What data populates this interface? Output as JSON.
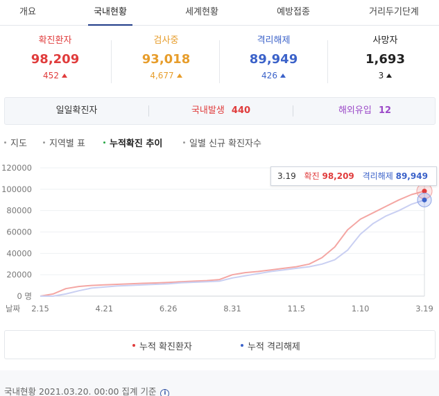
{
  "tabs": [
    {
      "label": "개요"
    },
    {
      "label": "국내현황"
    },
    {
      "label": "세계현황"
    },
    {
      "label": "예방접종"
    },
    {
      "label": "거리두기단계"
    }
  ],
  "stats": [
    {
      "label": "확진환자",
      "value": "98,209",
      "delta": "452",
      "color": "#e03c3c"
    },
    {
      "label": "검사중",
      "value": "93,018",
      "delta": "4,677",
      "color": "#e79d2b"
    },
    {
      "label": "격리해제",
      "value": "89,949",
      "delta": "426",
      "color": "#3b62c9"
    },
    {
      "label": "사망자",
      "value": "1,693",
      "delta": "3",
      "color": "#222222"
    }
  ],
  "daily": {
    "label": "일일확진자",
    "domestic_label": "국내발생",
    "domestic_value": "440",
    "overseas_label": "해외유입",
    "overseas_value": "12"
  },
  "subtabs": [
    {
      "label": "지도"
    },
    {
      "label": "지역별 표"
    },
    {
      "label": "누적확진 추이"
    },
    {
      "label": "일별 신규 확진자수"
    }
  ],
  "tooltip": {
    "date": "3.19",
    "confirmed_label": "확진",
    "confirmed_value": "98,209",
    "released_label": "격리해제",
    "released_value": "89,949"
  },
  "chart_data": {
    "type": "line",
    "y_ticks": [
      "120000",
      "100000",
      "80000",
      "60000",
      "40000",
      "20000",
      "0 명"
    ],
    "ylim": [
      0,
      120000
    ],
    "xlabel": "날짜",
    "x_ticks": [
      "2.15",
      "4.21",
      "6.26",
      "8.31",
      "11.5",
      "1.10",
      "3.19"
    ],
    "series": [
      {
        "name": "누적 확진환자",
        "color": "#f4a6a3",
        "values": [
          0,
          2000,
          7000,
          9000,
          10000,
          10500,
          11000,
          11500,
          12000,
          12300,
          12800,
          13500,
          14000,
          14500,
          15500,
          20000,
          22000,
          23000,
          24500,
          26000,
          27500,
          30000,
          36000,
          46000,
          62000,
          72000,
          78000,
          84000,
          90000,
          95000,
          98209
        ]
      },
      {
        "name": "누적 격리해제",
        "color": "#c9cff2",
        "values": [
          0,
          0,
          2000,
          5000,
          7500,
          8500,
          9500,
          10000,
          10500,
          11000,
          11500,
          12500,
          13000,
          13500,
          14000,
          17000,
          19000,
          21000,
          23000,
          24500,
          26000,
          27500,
          30000,
          34000,
          43000,
          58000,
          68000,
          75000,
          80000,
          86000,
          89949
        ]
      }
    ]
  },
  "legend": [
    {
      "label": "누적 확진환자",
      "color": "#e03c3c"
    },
    {
      "label": "누적 격리해제",
      "color": "#3b62c9"
    }
  ],
  "footer": {
    "text": "국내현황 2021.03.20. 00:00 집계 기준",
    "info_glyph": "i"
  }
}
